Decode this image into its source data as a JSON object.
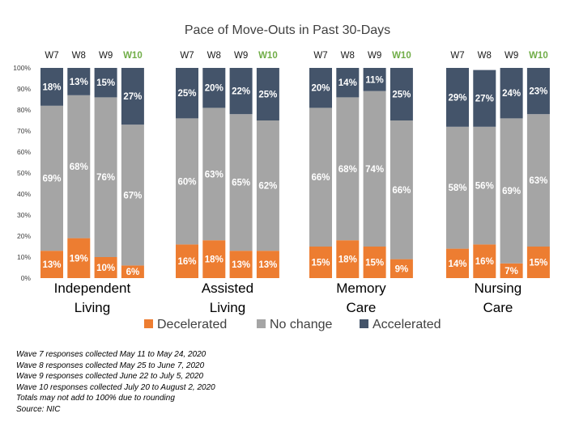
{
  "chart_data": {
    "type": "bar",
    "stacked": true,
    "title": "Pace of Move-Outs in Past 30-Days",
    "ylim": [
      0,
      100
    ],
    "yticks": [
      "0%",
      "10%",
      "20%",
      "30%",
      "40%",
      "50%",
      "60%",
      "70%",
      "80%",
      "90%",
      "100%"
    ],
    "waves": [
      "W7",
      "W8",
      "W9",
      "W10"
    ],
    "current_wave": "W10",
    "groups": [
      {
        "name": "Independent Living",
        "name_lines": [
          "Independent",
          "Living"
        ],
        "decelerated": [
          13,
          19,
          10,
          6
        ],
        "no_change": [
          69,
          68,
          76,
          67
        ],
        "accelerated": [
          18,
          13,
          15,
          27
        ]
      },
      {
        "name": "Assisted Living",
        "name_lines": [
          "Assisted",
          "Living"
        ],
        "decelerated": [
          16,
          18,
          13,
          13
        ],
        "no_change": [
          60,
          63,
          65,
          62
        ],
        "accelerated": [
          25,
          20,
          22,
          25
        ]
      },
      {
        "name": "Memory Care",
        "name_lines": [
          "Memory",
          "Care"
        ],
        "decelerated": [
          15,
          18,
          15,
          9
        ],
        "no_change": [
          66,
          68,
          74,
          66
        ],
        "accelerated": [
          20,
          14,
          11,
          25
        ]
      },
      {
        "name": "Nursing Care",
        "name_lines": [
          "Nursing",
          "Care"
        ],
        "decelerated": [
          14,
          16,
          7,
          15
        ],
        "no_change": [
          58,
          56,
          69,
          63
        ],
        "accelerated": [
          29,
          27,
          24,
          23
        ]
      }
    ],
    "series": [
      {
        "key": "decelerated",
        "name": "Decelerated",
        "color": "#ed7d31"
      },
      {
        "key": "no_change",
        "name": "No change",
        "color": "#a5a5a5"
      },
      {
        "key": "accelerated",
        "name": "Accelerated",
        "color": "#44546a"
      }
    ],
    "colors": {
      "current_wave_label": "#70ad47"
    },
    "legend_position": "bottom",
    "grid": false
  },
  "footnotes": [
    "Wave 7 responses collected May 11 to May 24, 2020",
    "Wave 8 responses collected May 25 to June 7, 2020",
    "Wave 9 responses collected June 22 to July 5, 2020",
    "Wave 10 responses collected July 20 to August 2, 2020",
    "Totals may not add to 100% due to rounding",
    "Source: NIC"
  ]
}
